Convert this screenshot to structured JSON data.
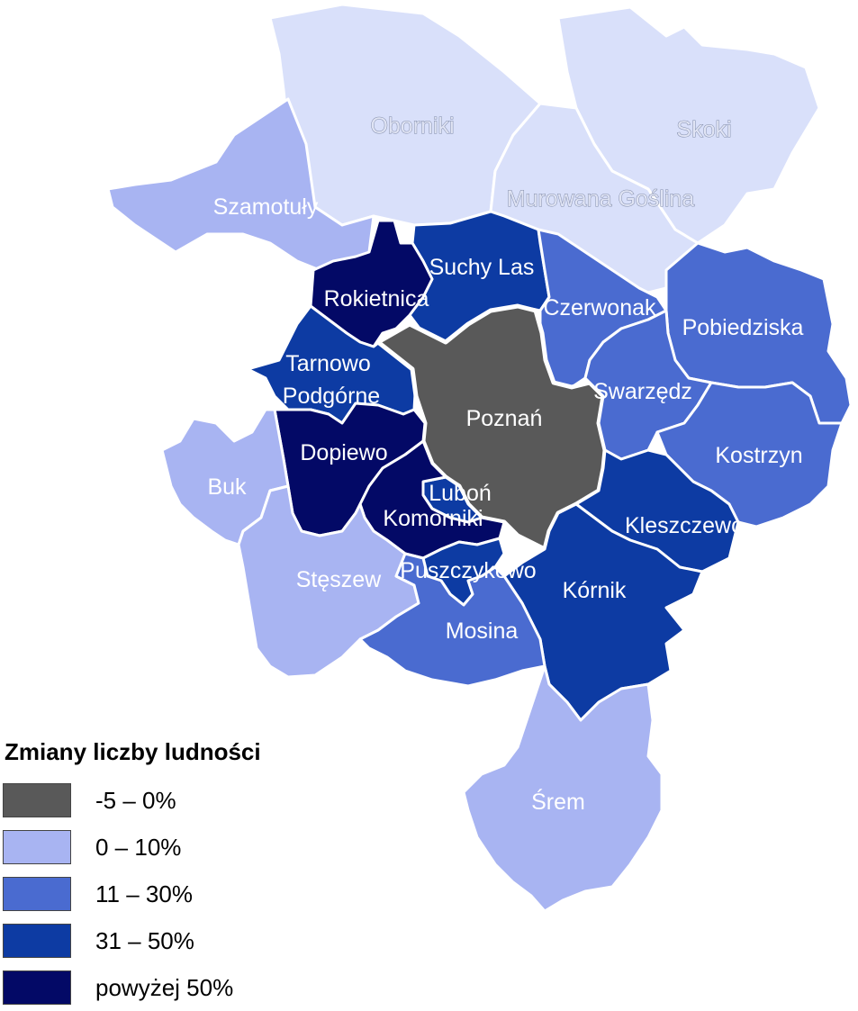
{
  "colors": {
    "cat_neg": "#595959",
    "cat_0_10": "#a8b4f2",
    "cat_11_30": "#4a6bd0",
    "cat_31_50": "#0d3ba3",
    "cat_50plus": "#030966",
    "pale": "#d9e0fa"
  },
  "map": {
    "regions": [
      {
        "key": "oborniki",
        "label": "Oborniki",
        "category": "pale"
      },
      {
        "key": "skoki",
        "label": "Skoki",
        "category": "pale"
      },
      {
        "key": "murowana",
        "label": "Murowana Goślina",
        "category": "pale"
      },
      {
        "key": "szamotuly",
        "label": "Szamotuły",
        "category": "cat_0_10"
      },
      {
        "key": "suchy_las",
        "label": "Suchy Las",
        "category": "cat_31_50"
      },
      {
        "key": "rokietnica",
        "label": "Rokietnica",
        "category": "cat_50plus"
      },
      {
        "key": "czerwonak",
        "label": "Czerwonak",
        "category": "cat_11_30"
      },
      {
        "key": "pobiedziska",
        "label": "Pobiedziska",
        "category": "cat_11_30"
      },
      {
        "key": "tarnowo",
        "label": "Tarnowo Podgórne",
        "category": "cat_31_50"
      },
      {
        "key": "poznan",
        "label": "Poznań",
        "category": "cat_neg"
      },
      {
        "key": "swarzedz",
        "label": "Swarzędz",
        "category": "cat_11_30"
      },
      {
        "key": "kostrzyn",
        "label": "Kostrzyn",
        "category": "cat_11_30"
      },
      {
        "key": "dopiewo",
        "label": "Dopiewo",
        "category": "cat_50plus"
      },
      {
        "key": "buk",
        "label": "Buk",
        "category": "cat_0_10"
      },
      {
        "key": "lubon",
        "label": "Luboń",
        "category": "cat_31_50"
      },
      {
        "key": "komorniki",
        "label": "Komorniki",
        "category": "cat_50plus"
      },
      {
        "key": "kleszczewo",
        "label": "Kleszczewo",
        "category": "cat_31_50"
      },
      {
        "key": "steszew",
        "label": "Stęszew",
        "category": "cat_0_10"
      },
      {
        "key": "puszczykowo",
        "label": "Puszczykowo",
        "category": "cat_31_50"
      },
      {
        "key": "kornik",
        "label": "Kórnik",
        "category": "cat_31_50"
      },
      {
        "key": "mosina",
        "label": "Mosina",
        "category": "cat_11_30"
      },
      {
        "key": "srem",
        "label": "Śrem",
        "category": "cat_0_10"
      }
    ]
  },
  "legend": {
    "title": "Zmiany liczby ludności",
    "items": [
      {
        "label": "-5 – 0%",
        "color": "#595959"
      },
      {
        "label": "0 – 10%",
        "color": "#a8b4f2"
      },
      {
        "label": "11 – 30%",
        "color": "#4a6bd0"
      },
      {
        "label": "31 – 50%",
        "color": "#0d3ba3"
      },
      {
        "label": "powyżej 50%",
        "color": "#030966"
      }
    ]
  }
}
